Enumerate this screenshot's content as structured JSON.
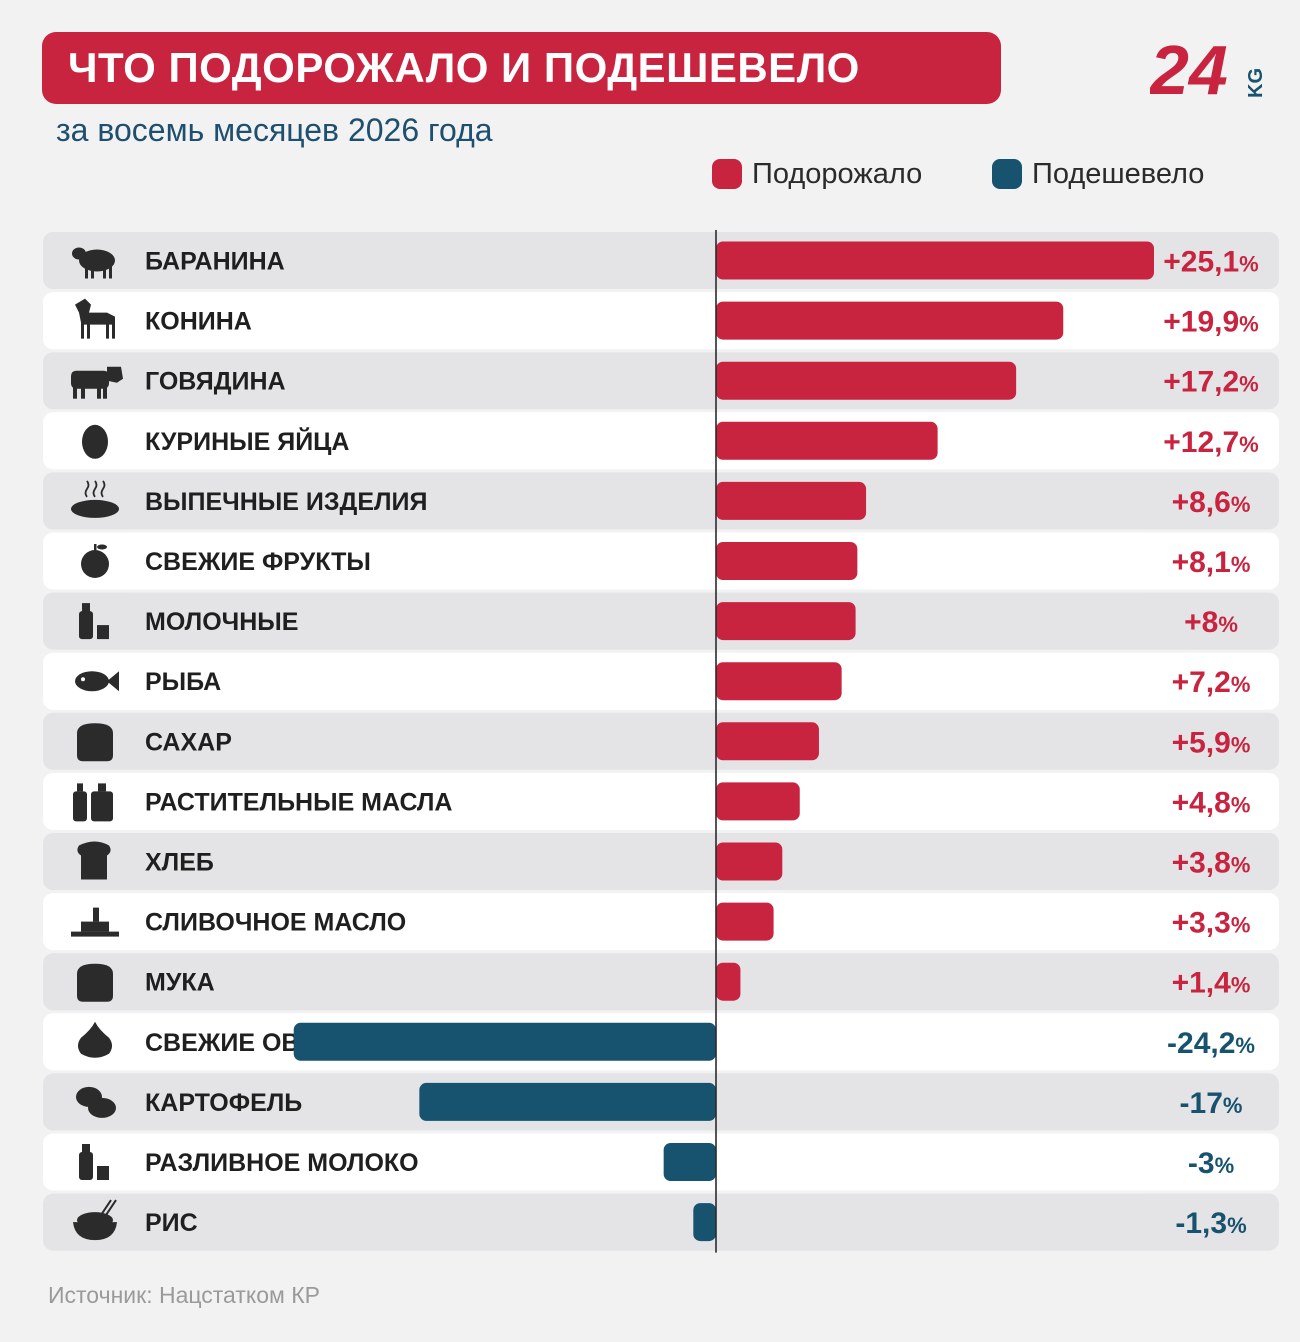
{
  "header": {
    "title": "ЧТО ПОДОРОЖАЛО И ПОДЕШЕВЕЛО",
    "subtitle": "за восемь месяцев 2026 года",
    "logo_text": "24",
    "logo_suffix": "KG"
  },
  "legend": {
    "up_label": "Подорожало",
    "down_label": "Подешевело"
  },
  "colors": {
    "up": "#c8243f",
    "down": "#17526f",
    "row_alt": "#e4e4e6",
    "row": "#ffffff"
  },
  "chart_data": {
    "type": "bar",
    "orientation": "horizontal",
    "title": "ЧТО ПОДОРОЖАЛО И ПОДЕШЕВЕЛО",
    "subtitle": "за восемь месяцев 2026 года",
    "unit": "%",
    "categories": [
      "БАРАНИНА",
      "КОНИНА",
      "ГОВЯДИНА",
      "КУРИНЫЕ ЯЙЦА",
      "ВЫПЕЧНЫЕ ИЗДЕЛИЯ",
      "СВЕЖИЕ ФРУКТЫ",
      "МОЛОЧНЫЕ",
      "РЫБА",
      "САХАР",
      "РАСТИТЕЛЬНЫЕ МАСЛА",
      "ХЛЕБ",
      "СЛИВОЧНОЕ МАСЛО",
      "МУКА",
      "СВЕЖИЕ ОВОЩИ",
      "КАРТОФЕЛЬ",
      "РАЗЛИВНОЕ МОЛОКО",
      "РИС"
    ],
    "values": [
      25.1,
      19.9,
      17.2,
      12.7,
      8.6,
      8.1,
      8,
      7.2,
      5.9,
      4.8,
      3.8,
      3.3,
      1.4,
      -24.2,
      -17,
      -3,
      -1.3
    ],
    "value_labels": [
      "+25,1",
      "+19,9",
      "+17,2",
      "+12,7",
      "+8,6",
      "+8,1",
      "+8",
      "+7,2",
      "+5,9",
      "+4,8",
      "+3,8",
      "+3,3",
      "+1,4",
      "-24,2",
      "-17",
      "-3",
      "-1,3"
    ],
    "icons": [
      "sheep-icon",
      "horse-icon",
      "cow-icon",
      "egg-icon",
      "bakery-icon",
      "apple-icon",
      "dairy-icon",
      "fish-icon",
      "sugar-sack-icon",
      "oil-bottles-icon",
      "bread-icon",
      "butter-icon",
      "flour-sack-icon",
      "garlic-icon",
      "potato-icon",
      "milk-icon",
      "rice-bowl-icon"
    ],
    "series": [
      {
        "name": "Подорожало",
        "color": "#c8243f"
      },
      {
        "name": "Подешевело",
        "color": "#17526f"
      }
    ],
    "legend_position": "top-right"
  },
  "footer": {
    "source": "Источник: Нацстатком КР"
  }
}
